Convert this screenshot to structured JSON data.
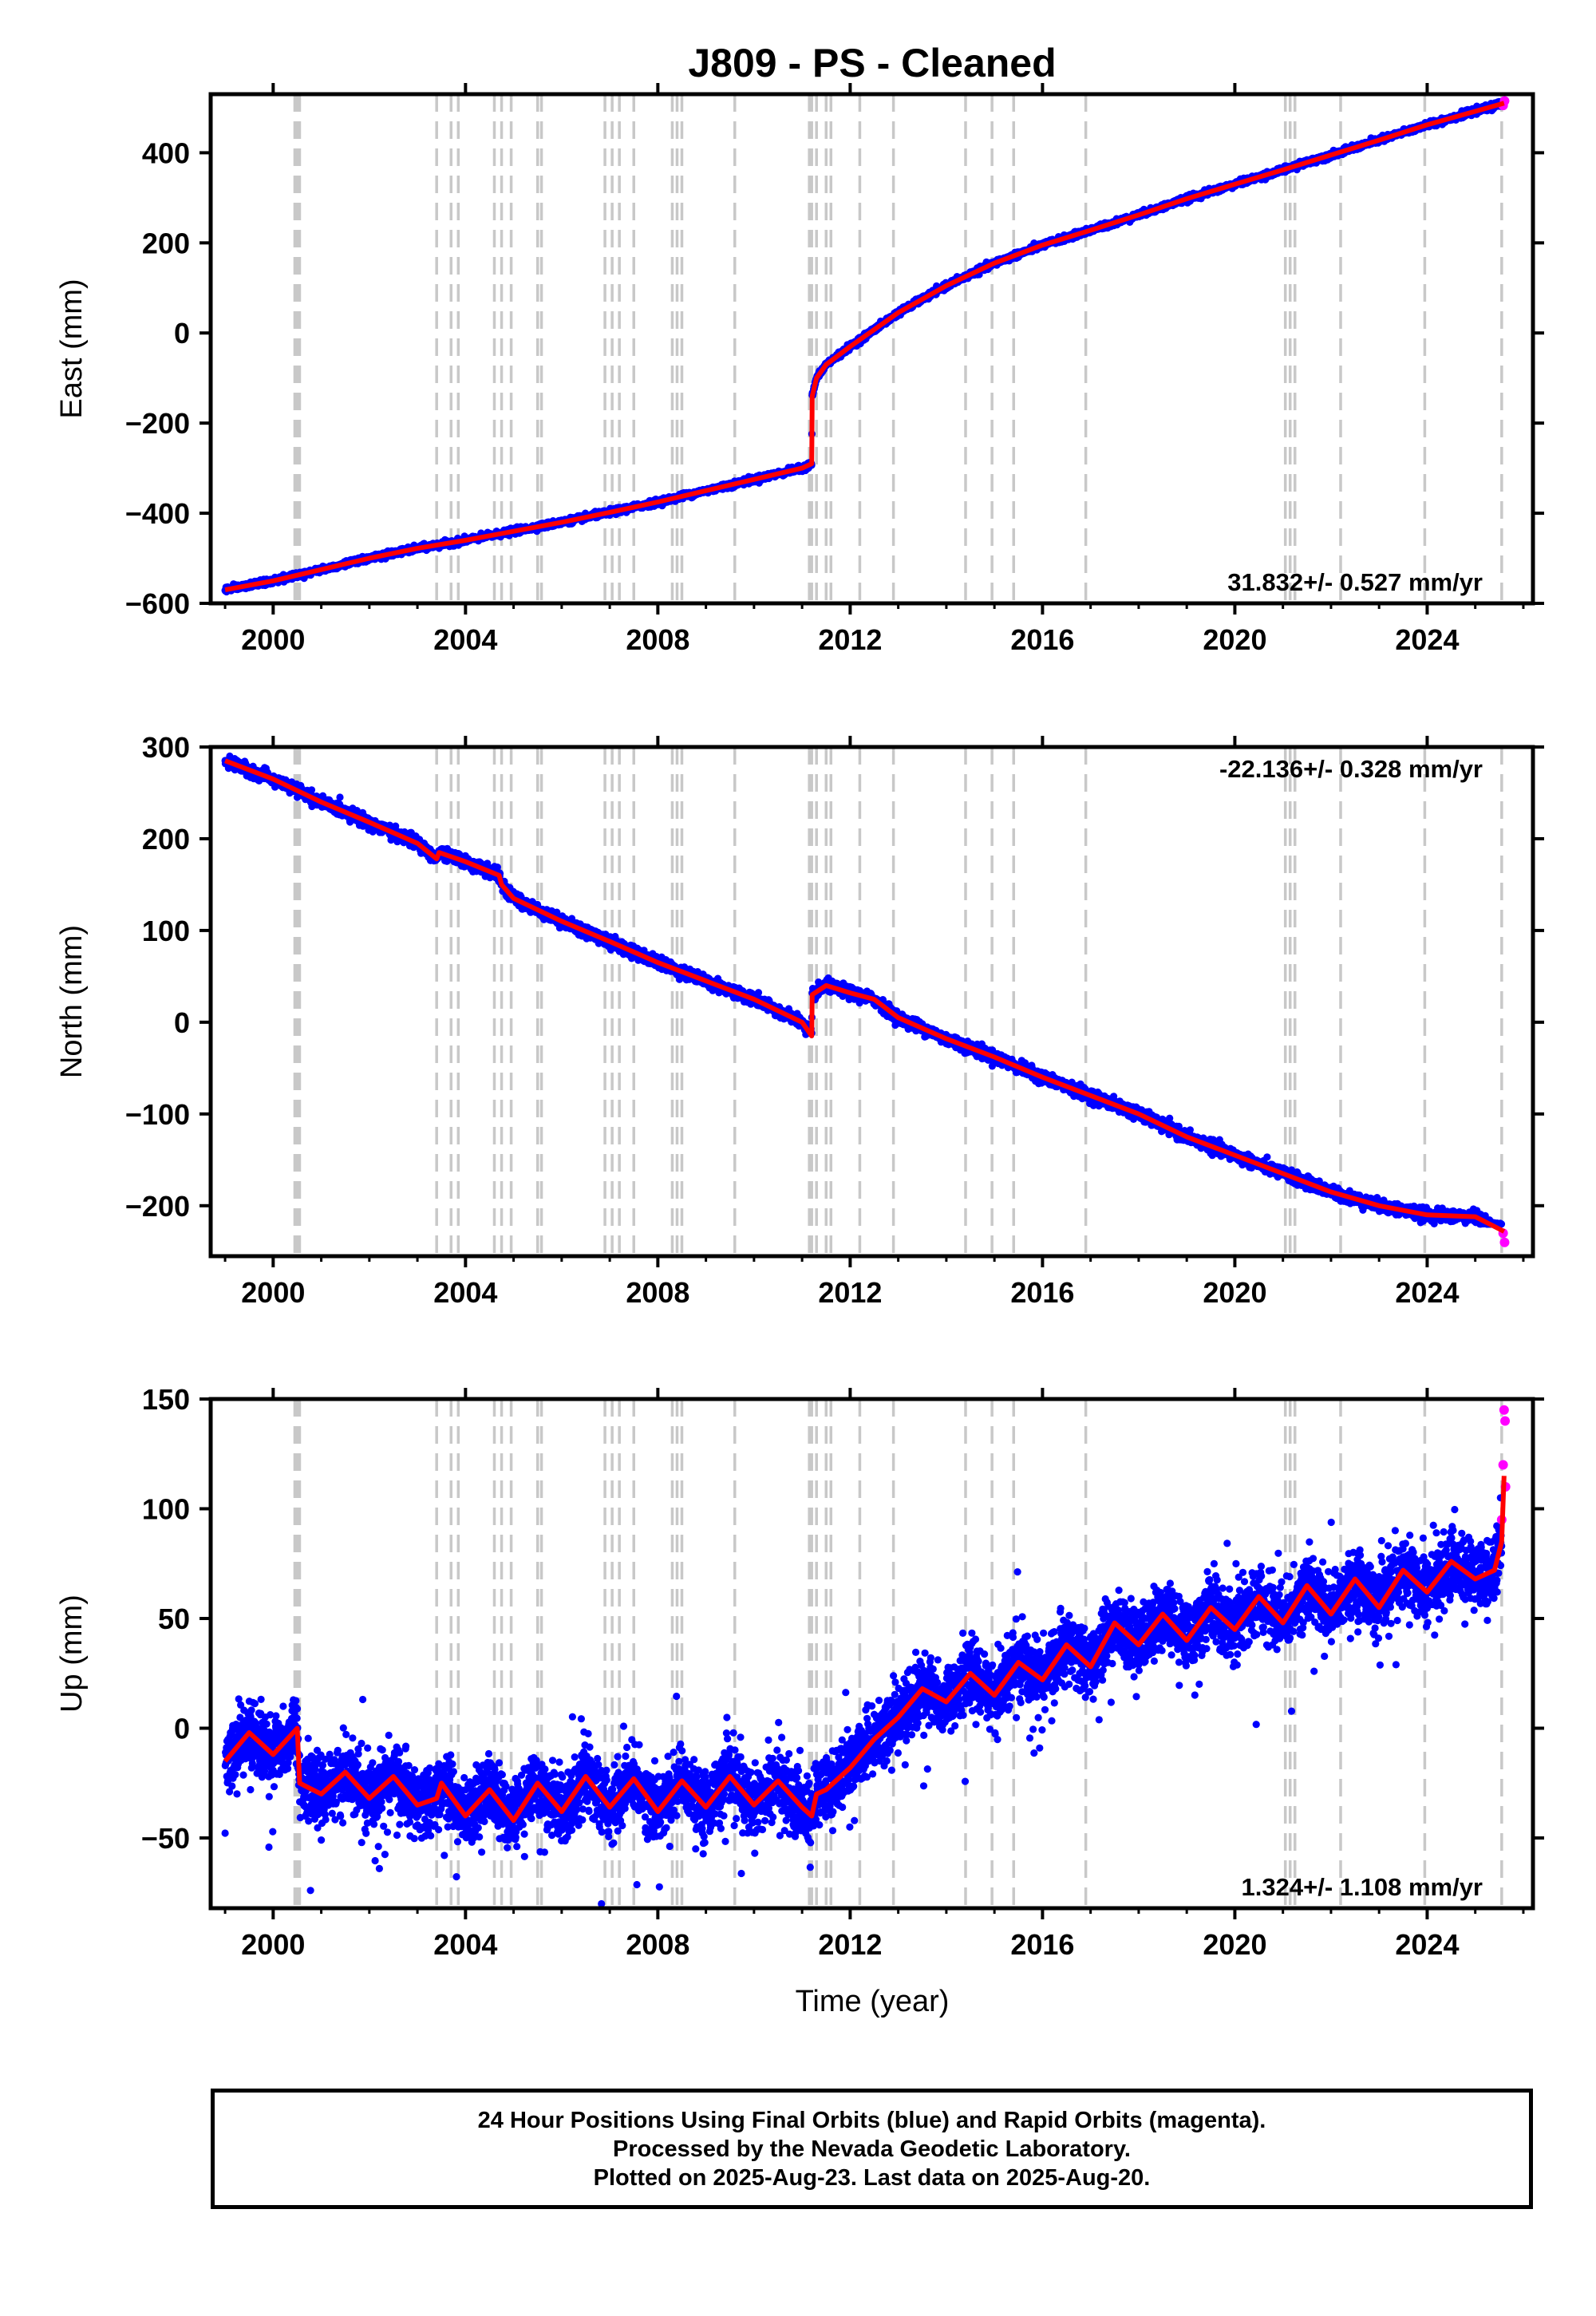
{
  "title": "J809  - PS - Cleaned",
  "xlabel": "Time (year)",
  "footer": {
    "line1": "24 Hour Positions Using Final Orbits (blue) and Rapid Orbits (magenta).",
    "line2": "Processed by the Nevada Geodetic Laboratory.",
    "line3": "Plotted on 2025-Aug-23. Last data on 2025-Aug-20."
  },
  "colors": {
    "final_orbits": "#0000ff",
    "rapid_orbits": "#ff00ff",
    "model_fit": "#ff0000",
    "event_lines": "#c8c8c8"
  },
  "chart_data": [
    {
      "type": "scatter",
      "name": "east",
      "ylabel": "East (mm)",
      "rate_label": "31.832+/- 0.527 mm/yr",
      "rate_position": "bottom-right",
      "xlim": [
        1998.7,
        2026.2
      ],
      "ylim": [
        -600,
        530
      ],
      "x_ticks": [
        "2000",
        "2004",
        "2008",
        "2012",
        "2016",
        "2020",
        "2024"
      ],
      "y_ticks": [
        "−600",
        "−400",
        "−200",
        "0",
        "200",
        "400"
      ],
      "series": [
        {
          "name": "model",
          "x": [
            1999.0,
            2000.0,
            2001.0,
            2002.0,
            2003.0,
            2004.0,
            2005.0,
            2006.0,
            2007.0,
            2008.0,
            2009.0,
            2010.0,
            2011.0,
            2011.2,
            2011.21,
            2011.3,
            2011.5,
            2012.0,
            2013.0,
            2014.0,
            2015.0,
            2016.0,
            2017.0,
            2018.0,
            2019.0,
            2020.0,
            2021.0,
            2022.0,
            2023.0,
            2024.0,
            2025.0,
            2025.6
          ],
          "y": [
            -570,
            -550,
            -525,
            -500,
            -478,
            -460,
            -440,
            -420,
            -398,
            -375,
            -350,
            -325,
            -300,
            -290,
            -140,
            -100,
            -70,
            -30,
            45,
            105,
            155,
            195,
            228,
            262,
            298,
            330,
            362,
            395,
            428,
            462,
            492,
            510
          ]
        }
      ],
      "dense_range": {
        "min": -600,
        "max": 520
      },
      "rapid_points": [
        [
          2025.58,
          505
        ],
        [
          2025.61,
          515
        ]
      ]
    },
    {
      "type": "scatter",
      "name": "north",
      "ylabel": "North (mm)",
      "rate_label": "-22.136+/- 0.328 mm/yr",
      "rate_position": "top-right",
      "xlim": [
        1998.7,
        2026.2
      ],
      "ylim": [
        -255,
        300
      ],
      "x_ticks": [
        "2000",
        "2004",
        "2008",
        "2012",
        "2016",
        "2020",
        "2024"
      ],
      "y_ticks": [
        "−200",
        "−100",
        "0",
        "100",
        "200",
        "300"
      ],
      "series": [
        {
          "name": "model",
          "x": [
            1999.0,
            2000.0,
            2001.0,
            2002.0,
            2003.0,
            2003.4,
            2003.45,
            2004.0,
            2004.7,
            2004.75,
            2005.0,
            2006.0,
            2007.0,
            2008.0,
            2009.0,
            2010.0,
            2011.0,
            2011.2,
            2011.21,
            2011.5,
            2012.0,
            2012.5,
            2013.0,
            2014.0,
            2015.0,
            2016.0,
            2017.0,
            2018.0,
            2019.0,
            2020.0,
            2021.0,
            2022.0,
            2023.0,
            2024.0,
            2025.0,
            2025.6
          ],
          "y": [
            285,
            265,
            240,
            218,
            195,
            178,
            185,
            175,
            160,
            150,
            135,
            110,
            88,
            65,
            45,
            25,
            0,
            -15,
            30,
            40,
            32,
            25,
            5,
            -18,
            -38,
            -60,
            -80,
            -100,
            -125,
            -145,
            -165,
            -185,
            -200,
            -210,
            -212,
            -228
          ]
        }
      ],
      "dense_range": {
        "min": -220,
        "max": 290
      },
      "rapid_points": [
        [
          2025.58,
          -230
        ],
        [
          2025.61,
          -240
        ]
      ]
    },
    {
      "type": "scatter",
      "name": "up",
      "ylabel": "Up (mm)",
      "rate_label": "1.324+/- 1.108 mm/yr",
      "rate_position": "bottom-right",
      "xlim": [
        1998.7,
        2026.2
      ],
      "ylim": [
        -82,
        150
      ],
      "x_ticks": [
        "2000",
        "2004",
        "2008",
        "2012",
        "2016",
        "2020",
        "2024"
      ],
      "y_ticks": [
        "−50",
        "0",
        "50",
        "100",
        "150"
      ],
      "series": [
        {
          "name": "model",
          "x": [
            1999.0,
            1999.5,
            2000.0,
            2000.5,
            2000.55,
            2001.0,
            2001.5,
            2002.0,
            2002.5,
            2003.0,
            2003.4,
            2003.5,
            2004.0,
            2004.5,
            2005.0,
            2005.5,
            2006.0,
            2006.5,
            2007.0,
            2007.5,
            2008.0,
            2008.5,
            2009.0,
            2009.5,
            2010.0,
            2010.5,
            2011.0,
            2011.2,
            2011.3,
            2011.5,
            2012.0,
            2012.5,
            2013.0,
            2013.5,
            2014.0,
            2014.5,
            2015.0,
            2015.5,
            2016.0,
            2016.5,
            2017.0,
            2017.5,
            2018.0,
            2018.5,
            2019.0,
            2019.5,
            2020.0,
            2020.5,
            2021.0,
            2021.5,
            2022.0,
            2022.5,
            2023.0,
            2023.5,
            2024.0,
            2024.5,
            2025.0,
            2025.4,
            2025.55,
            2025.6
          ],
          "y": [
            -15,
            -2,
            -12,
            0,
            -25,
            -30,
            -20,
            -32,
            -22,
            -35,
            -32,
            -25,
            -40,
            -28,
            -42,
            -25,
            -38,
            -22,
            -36,
            -23,
            -38,
            -24,
            -36,
            -22,
            -35,
            -24,
            -36,
            -40,
            -30,
            -28,
            -18,
            -5,
            5,
            18,
            12,
            25,
            15,
            30,
            22,
            38,
            28,
            48,
            38,
            52,
            40,
            55,
            45,
            60,
            48,
            65,
            52,
            68,
            55,
            72,
            62,
            76,
            68,
            72,
            85,
            115
          ]
        }
      ],
      "dense_range": {
        "min": -80,
        "max": 105
      },
      "rapid_points": [
        [
          2025.55,
          95
        ],
        [
          2025.58,
          120
        ],
        [
          2025.6,
          145
        ],
        [
          2025.62,
          140
        ],
        [
          2025.63,
          110
        ]
      ]
    }
  ],
  "event_lines": [
    2000.45,
    2000.5,
    2000.55,
    2003.4,
    2003.7,
    2003.85,
    2004.6,
    2004.75,
    2004.95,
    2005.5,
    2005.58,
    2006.9,
    2007.05,
    2007.2,
    2007.5,
    2008.3,
    2008.4,
    2008.5,
    2009.6,
    2011.15,
    2011.2,
    2011.3,
    2011.5,
    2011.6,
    2012.2,
    2012.9,
    2014.4,
    2014.95,
    2015.4,
    2016.9,
    2021.05,
    2021.15,
    2021.25,
    2022.2,
    2023.95,
    2025.55
  ]
}
